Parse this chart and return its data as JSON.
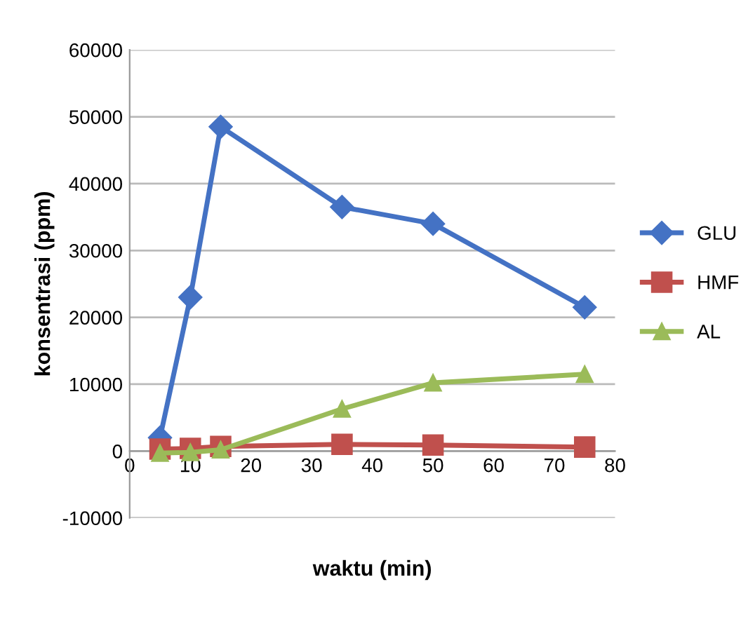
{
  "chart_data": {
    "type": "line",
    "xlabel": "waktu (min)",
    "ylabel": "konsentrasi (ppm)",
    "x": [
      5,
      10,
      15,
      35,
      50,
      75
    ],
    "series": [
      {
        "name": "GLU",
        "color": "#4472c4",
        "marker": "diamond",
        "values": [
          2000,
          23000,
          48500,
          36500,
          34000,
          21500
        ]
      },
      {
        "name": "HMF",
        "color": "#c0504d",
        "marker": "square",
        "values": [
          300,
          400,
          700,
          1000,
          900,
          600
        ]
      },
      {
        "name": "AL",
        "color": "#9bbb59",
        "marker": "triangle",
        "values": [
          -300,
          -200,
          200,
          6300,
          10200,
          11500
        ]
      }
    ],
    "xlim": [
      0,
      80
    ],
    "xticks": [
      0,
      10,
      20,
      30,
      40,
      50,
      60,
      70,
      80
    ],
    "ylim": [
      -10000,
      60000
    ],
    "yticks": [
      -10000,
      0,
      10000,
      20000,
      30000,
      40000,
      50000,
      60000
    ],
    "grid": "y",
    "legend": "right",
    "line_style": "solid"
  }
}
